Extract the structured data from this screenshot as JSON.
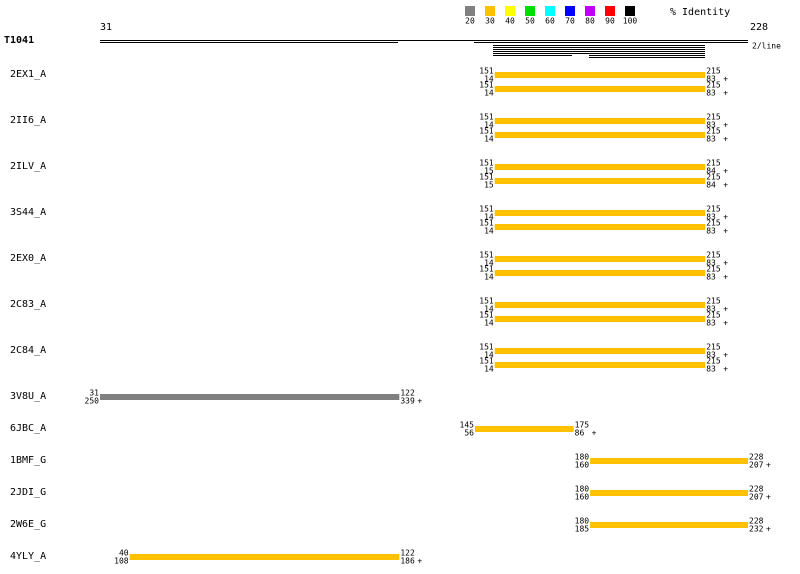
{
  "query": {
    "label": "T1041",
    "start": 31,
    "end": 228,
    "note": "2/line"
  },
  "legend": {
    "title": "% Identity",
    "items": [
      {
        "label": "20",
        "color": "#808080"
      },
      {
        "label": "30",
        "color": "#ffc000"
      },
      {
        "label": "40",
        "color": "#ffff00"
      },
      {
        "label": "50",
        "color": "#00dd00"
      },
      {
        "label": "60",
        "color": "#00ffff"
      },
      {
        "label": "70",
        "color": "#0000ff"
      },
      {
        "label": "80",
        "color": "#c000ff"
      },
      {
        "label": "90",
        "color": "#ff0000"
      },
      {
        "label": "100",
        "color": "#000000"
      }
    ]
  },
  "rows": [
    {
      "name": "2EX1_A",
      "hits": [
        {
          "q_start": 151,
          "t_start": 14,
          "q_end": 215,
          "t_end": 83,
          "strand": "+",
          "color": "#ffc000"
        },
        {
          "q_start": 151,
          "t_start": 14,
          "q_end": 215,
          "t_end": 83,
          "strand": "+",
          "color": "#ffc000"
        }
      ]
    },
    {
      "name": "2II6_A",
      "hits": [
        {
          "q_start": 151,
          "t_start": 14,
          "q_end": 215,
          "t_end": 83,
          "strand": "+",
          "color": "#ffc000"
        },
        {
          "q_start": 151,
          "t_start": 14,
          "q_end": 215,
          "t_end": 83,
          "strand": "+",
          "color": "#ffc000"
        }
      ]
    },
    {
      "name": "2ILV_A",
      "hits": [
        {
          "q_start": 151,
          "t_start": 15,
          "q_end": 215,
          "t_end": 84,
          "strand": "+",
          "color": "#ffc000"
        },
        {
          "q_start": 151,
          "t_start": 15,
          "q_end": 215,
          "t_end": 84,
          "strand": "+",
          "color": "#ffc000"
        }
      ]
    },
    {
      "name": "3S44_A",
      "hits": [
        {
          "q_start": 151,
          "t_start": 14,
          "q_end": 215,
          "t_end": 83,
          "strand": "+",
          "color": "#ffc000"
        },
        {
          "q_start": 151,
          "t_start": 14,
          "q_end": 215,
          "t_end": 83,
          "strand": "+",
          "color": "#ffc000"
        }
      ]
    },
    {
      "name": "2EX0_A",
      "hits": [
        {
          "q_start": 151,
          "t_start": 14,
          "q_end": 215,
          "t_end": 83,
          "strand": "+",
          "color": "#ffc000"
        },
        {
          "q_start": 151,
          "t_start": 14,
          "q_end": 215,
          "t_end": 83,
          "strand": "+",
          "color": "#ffc000"
        }
      ]
    },
    {
      "name": "2C83_A",
      "hits": [
        {
          "q_start": 151,
          "t_start": 14,
          "q_end": 215,
          "t_end": 83,
          "strand": "+",
          "color": "#ffc000"
        },
        {
          "q_start": 151,
          "t_start": 14,
          "q_end": 215,
          "t_end": 83,
          "strand": "+",
          "color": "#ffc000"
        }
      ]
    },
    {
      "name": "2C84_A",
      "hits": [
        {
          "q_start": 151,
          "t_start": 14,
          "q_end": 215,
          "t_end": 83,
          "strand": "+",
          "color": "#ffc000"
        },
        {
          "q_start": 151,
          "t_start": 14,
          "q_end": 215,
          "t_end": 83,
          "strand": "+",
          "color": "#ffc000"
        }
      ]
    },
    {
      "name": "3V8U_A",
      "hits": [
        {
          "q_start": 31,
          "t_start": 250,
          "q_end": 122,
          "t_end": 339,
          "strand": "+",
          "color": "#808080"
        }
      ]
    },
    {
      "name": "6JBC_A",
      "hits": [
        {
          "q_start": 145,
          "t_start": 56,
          "q_end": 175,
          "t_end": 86,
          "strand": "+",
          "color": "#ffc000"
        }
      ]
    },
    {
      "name": "1BMF_G",
      "hits": [
        {
          "q_start": 180,
          "t_start": 160,
          "q_end": 228,
          "t_end": 207,
          "strand": "+",
          "color": "#ffc000"
        }
      ]
    },
    {
      "name": "2JDI_G",
      "hits": [
        {
          "q_start": 180,
          "t_start": 160,
          "q_end": 228,
          "t_end": 207,
          "strand": "+",
          "color": "#ffc000"
        }
      ]
    },
    {
      "name": "2W6E_G",
      "hits": [
        {
          "q_start": 180,
          "t_start": 185,
          "q_end": 228,
          "t_end": 232,
          "strand": "+",
          "color": "#ffc000"
        }
      ]
    },
    {
      "name": "4YLY_A",
      "hits": [
        {
          "q_start": 40,
          "t_start": 108,
          "q_end": 122,
          "t_end": 186,
          "strand": "+",
          "color": "#ffc000"
        }
      ]
    }
  ]
}
